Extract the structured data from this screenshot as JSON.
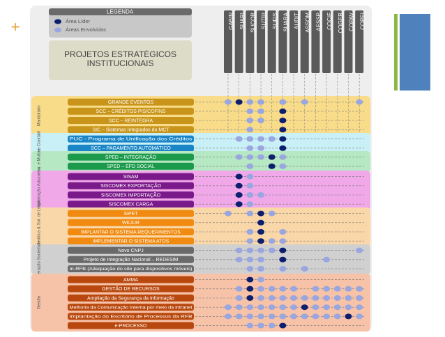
{
  "legend": {
    "title": "LEGENDA",
    "items": [
      "Área Líder",
      "Áreas Envolvidas"
    ]
  },
  "heading": "PROJETOS ESTRATÉGICOS INSTITUCIONAIS",
  "columns": [
    "GABIN",
    "SUARI",
    "SUCOR",
    "SUTRI",
    "SUFIS",
    "SUARA",
    "AUDIT",
    "ASSOM",
    "AESSP",
    "COCIF",
    "COGER",
    "COPAV",
    "COPEI"
  ],
  "groups": [
    {
      "name": "Mandatário",
      "rows": [
        {
          "label": "GRANDE EVENTOS",
          "cells": [
            1,
            0,
            1,
            1,
            null,
            1,
            null,
            1,
            null,
            null,
            null,
            null,
            1
          ]
        },
        {
          "label": "SCC – CRÉDITOS PIS/COFINS",
          "cells": [
            null,
            null,
            1,
            1,
            null,
            0,
            null,
            null,
            null,
            null,
            null,
            null,
            null
          ]
        },
        {
          "label": "SCC – REINTEGRA",
          "cells": [
            null,
            null,
            1,
            1,
            null,
            0,
            null,
            null,
            null,
            null,
            null,
            null,
            null
          ]
        },
        {
          "label": "SIC – Sistemas Integrados do MCT",
          "cells": [
            null,
            null,
            1,
            null,
            null,
            0,
            null,
            null,
            null,
            null,
            null,
            null,
            null
          ]
        }
      ]
    },
    {
      "name": "Área Contábil",
      "rows": [
        {
          "label": "PUC - Programa de Unificação dos Créditos",
          "cells": [
            null,
            1,
            1,
            1,
            1,
            0,
            null,
            null,
            null,
            null,
            null,
            null,
            null
          ]
        },
        {
          "label": "SCC – PAGAMENTO AUTOMÁTICO",
          "cells": [
            null,
            null,
            1,
            1,
            null,
            0,
            null,
            null,
            null,
            null,
            null,
            null,
            null
          ]
        }
      ]
    },
    {
      "name": "Fisc. e Multas",
      "rows": [
        {
          "label": "SPED – INTEGRAÇÃO",
          "cells": [
            null,
            1,
            1,
            1,
            0,
            1,
            null,
            null,
            null,
            null,
            null,
            null,
            null
          ]
        },
        {
          "label": "SPED – EFD SOCIAL",
          "cells": [
            null,
            null,
            1,
            null,
            0,
            1,
            null,
            null,
            null,
            null,
            null,
            null,
            null
          ]
        }
      ]
    },
    {
      "name": "Administração Aduaneira",
      "rows": [
        {
          "label": "SISAM",
          "cells": [
            null,
            0,
            1,
            null,
            null,
            null,
            null,
            null,
            null,
            null,
            null,
            null,
            null
          ]
        },
        {
          "label": "SISCOMEX EXPORTAÇÃO",
          "cells": [
            null,
            0,
            1,
            null,
            null,
            null,
            null,
            null,
            null,
            null,
            null,
            null,
            null
          ]
        },
        {
          "label": "SISCOMEX IMPORTAÇÃO",
          "cells": [
            null,
            0,
            1,
            1,
            null,
            null,
            null,
            null,
            null,
            null,
            null,
            null,
            null
          ]
        },
        {
          "label": "SISCOMEX CARGA",
          "cells": [
            null,
            0,
            1,
            null,
            null,
            null,
            null,
            null,
            null,
            null,
            null,
            null,
            null
          ]
        }
      ]
    },
    {
      "name": "Seg. Jurídica & Sol. de Litígio",
      "rows": [
        {
          "label": "SIPET",
          "cells": [
            1,
            null,
            1,
            0,
            1,
            null,
            null,
            null,
            null,
            null,
            null,
            null,
            null
          ]
        },
        {
          "label": "WKJUR",
          "cells": [
            null,
            null,
            null,
            0,
            null,
            null,
            null,
            null,
            null,
            null,
            null,
            null,
            null
          ]
        },
        {
          "label": "IMPLANTAR O SISTEMA REQUERIMENTOS",
          "cells": [
            null,
            null,
            1,
            0,
            null,
            1,
            null,
            null,
            null,
            null,
            null,
            null,
            null
          ]
        },
        {
          "label": "IMPLEMENTAR O SISTEMA  ATOS",
          "cells": [
            null,
            null,
            1,
            0,
            1,
            1,
            null,
            null,
            null,
            null,
            null,
            null,
            null
          ]
        }
      ]
    },
    {
      "name": "Interação Sociedade",
      "rows": [
        {
          "label": "Novo CNPJ",
          "cells": [
            null,
            1,
            1,
            1,
            1,
            0,
            null,
            null,
            null,
            null,
            null,
            null,
            1
          ]
        },
        {
          "label": "Projeto de Integração Nacional – REDESIM",
          "cells": [
            null,
            1,
            1,
            1,
            null,
            0,
            null,
            null,
            null,
            1,
            null,
            null,
            null
          ]
        },
        {
          "label": "m-RFB (Adequação do site para dispositivos móveis)",
          "cells": [
            null,
            null,
            1,
            1,
            null,
            1,
            null,
            1,
            null,
            null,
            null,
            null,
            null
          ]
        }
      ]
    },
    {
      "name": "Gestão",
      "rows": [
        {
          "label": "AMMA",
          "cells": [
            null,
            null,
            0,
            1,
            null,
            null,
            null,
            null,
            null,
            null,
            null,
            null,
            null
          ]
        },
        {
          "label": "GESTÃO DE RECURSOS",
          "cells": [
            null,
            1,
            0,
            1,
            1,
            1,
            1,
            null,
            1,
            1,
            1,
            1,
            1
          ]
        },
        {
          "label": "Ampliação da Segurança da Informação",
          "cells": [
            null,
            1,
            0,
            1,
            1,
            1,
            1,
            1,
            1,
            1,
            1,
            1,
            1
          ]
        },
        {
          "label": "Melhoria da Comunicação Interna por meio da intranet",
          "cells": [
            1,
            1,
            1,
            1,
            1,
            1,
            1,
            0,
            1,
            1,
            1,
            1,
            1
          ]
        },
        {
          "label": "Implantação do Escritório de Processos da RFB",
          "cells": [
            1,
            1,
            1,
            1,
            1,
            1,
            1,
            1,
            1,
            1,
            1,
            0,
            1
          ]
        },
        {
          "label": "e-PROCESSO",
          "cells": [
            null,
            null,
            1,
            1,
            1,
            0,
            null,
            null,
            null,
            null,
            null,
            null,
            null
          ]
        }
      ]
    }
  ]
}
